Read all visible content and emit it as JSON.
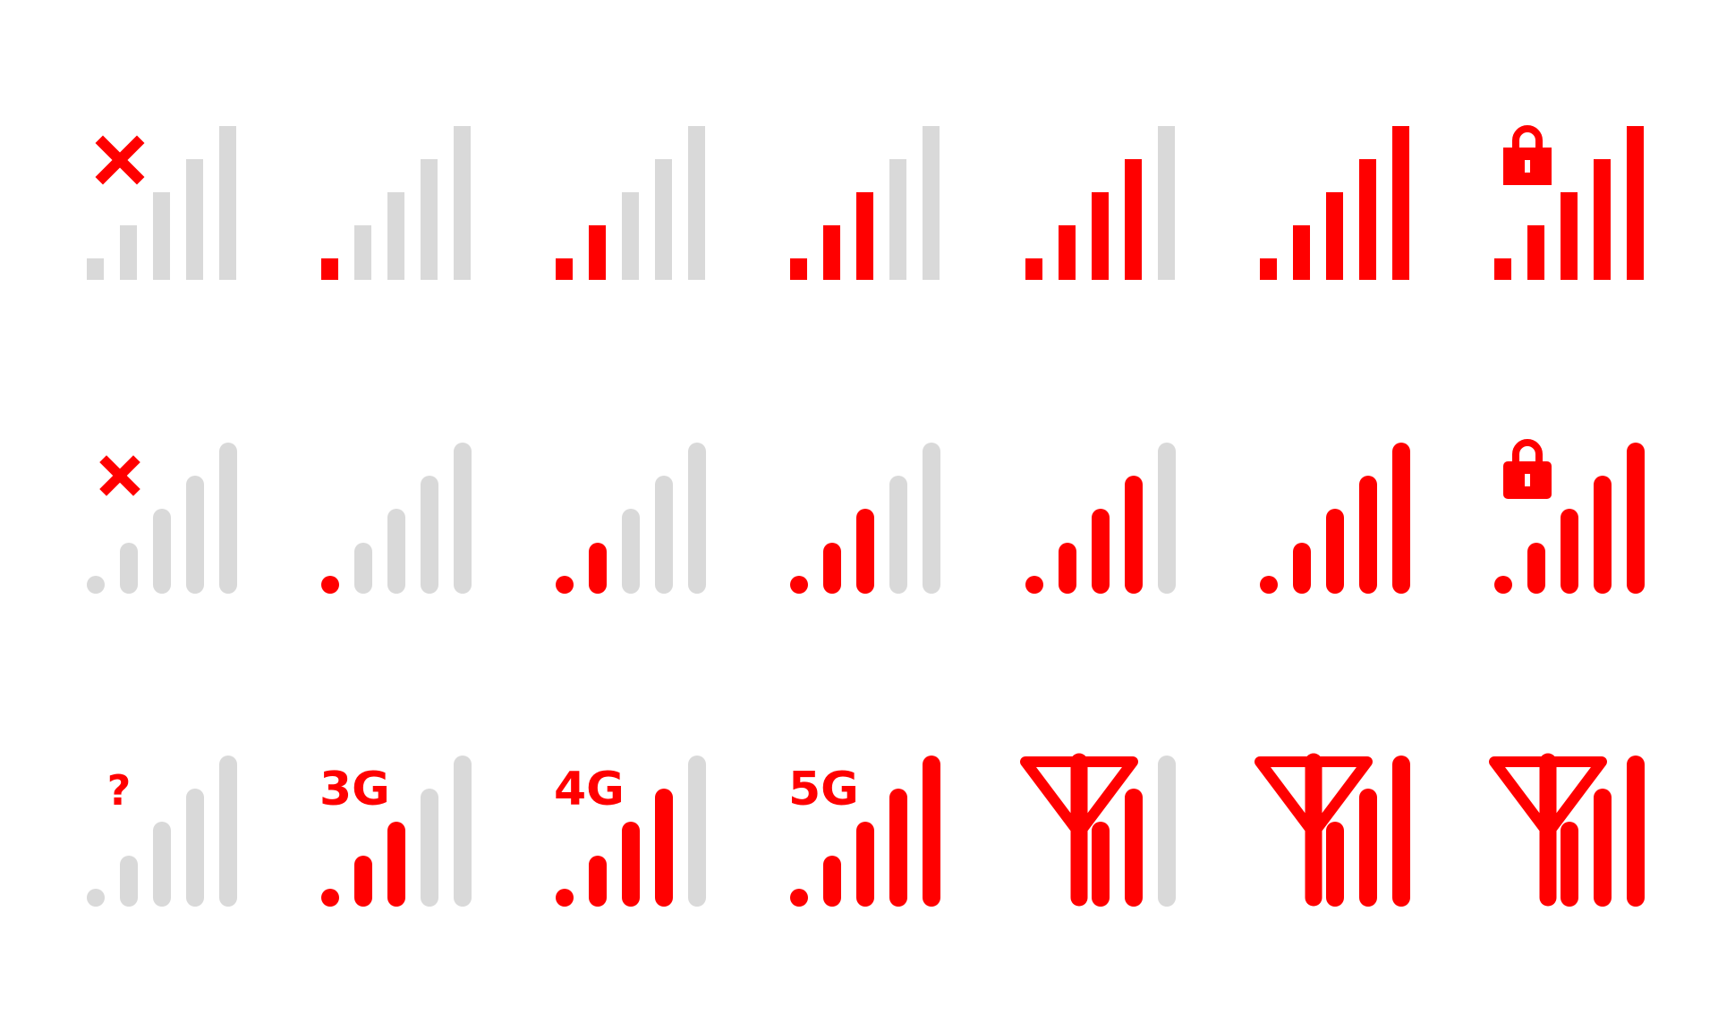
{
  "colors": {
    "active": "#ff0000",
    "inactive": "#d9d9d9",
    "background": "#ffffff"
  },
  "rows": [
    {
      "bar_style": "square",
      "icons": [
        {
          "active_bars": 0,
          "badge": "x-icon"
        },
        {
          "active_bars": 1,
          "badge": null
        },
        {
          "active_bars": 2,
          "badge": null
        },
        {
          "active_bars": 3,
          "badge": null
        },
        {
          "active_bars": 4,
          "badge": null
        },
        {
          "active_bars": 5,
          "badge": null
        },
        {
          "active_bars": 5,
          "badge": "lock-icon"
        }
      ]
    },
    {
      "bar_style": "rounded",
      "icons": [
        {
          "active_bars": 0,
          "badge": "x-icon"
        },
        {
          "active_bars": 1,
          "badge": null
        },
        {
          "active_bars": 2,
          "badge": null
        },
        {
          "active_bars": 3,
          "badge": null
        },
        {
          "active_bars": 4,
          "badge": null
        },
        {
          "active_bars": 5,
          "badge": null
        },
        {
          "active_bars": 5,
          "badge": "lock-icon"
        }
      ]
    },
    {
      "bar_style": "rounded",
      "icons": [
        {
          "active_bars": 0,
          "badge": "question-icon",
          "label": "?"
        },
        {
          "active_bars": 3,
          "badge": "text-label",
          "label": "3G"
        },
        {
          "active_bars": 4,
          "badge": "text-label",
          "label": "4G"
        },
        {
          "active_bars": 5,
          "badge": "text-label",
          "label": "5G"
        },
        {
          "active_bars": 2,
          "badge": "antenna-icon"
        },
        {
          "active_bars": 3,
          "badge": "antenna-icon"
        },
        {
          "active_bars": 4,
          "badge": "antenna-icon"
        }
      ]
    }
  ]
}
